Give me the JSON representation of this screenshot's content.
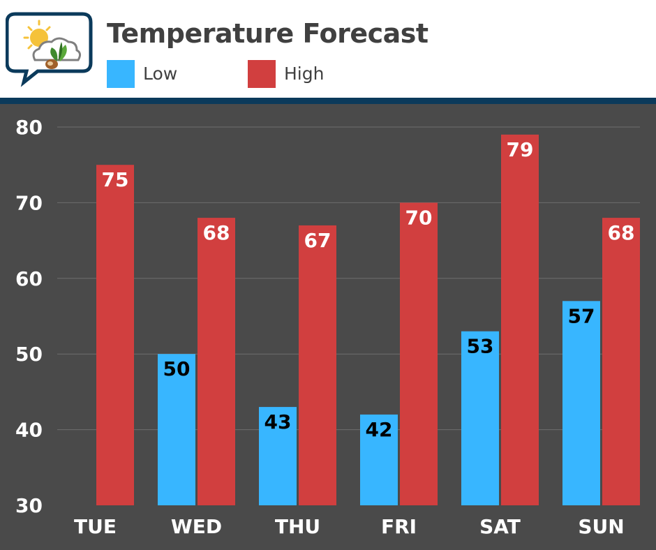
{
  "header": {
    "title": "Temperature Forecast",
    "logo_icon": "sun-cloud-leaf-icon"
  },
  "legend": [
    {
      "label": "Low",
      "color": "#38b6ff"
    },
    {
      "label": "High",
      "color": "#d13f3f"
    }
  ],
  "chart_data": {
    "type": "bar",
    "categories": [
      "TUE",
      "WED",
      "THU",
      "FRI",
      "SAT",
      "SUN"
    ],
    "series": [
      {
        "name": "Low",
        "color": "#38b6ff",
        "values": [
          null,
          50,
          43,
          42,
          53,
          57
        ]
      },
      {
        "name": "High",
        "color": "#d13f3f",
        "values": [
          75,
          68,
          67,
          70,
          79,
          68
        ]
      }
    ],
    "title": "Temperature Forecast",
    "xlabel": "",
    "ylabel": "",
    "ylim": [
      30,
      80
    ],
    "yticks": [
      30,
      40,
      50,
      60,
      70,
      80
    ],
    "grid": true,
    "legend_position": "top",
    "data_labels": true
  }
}
